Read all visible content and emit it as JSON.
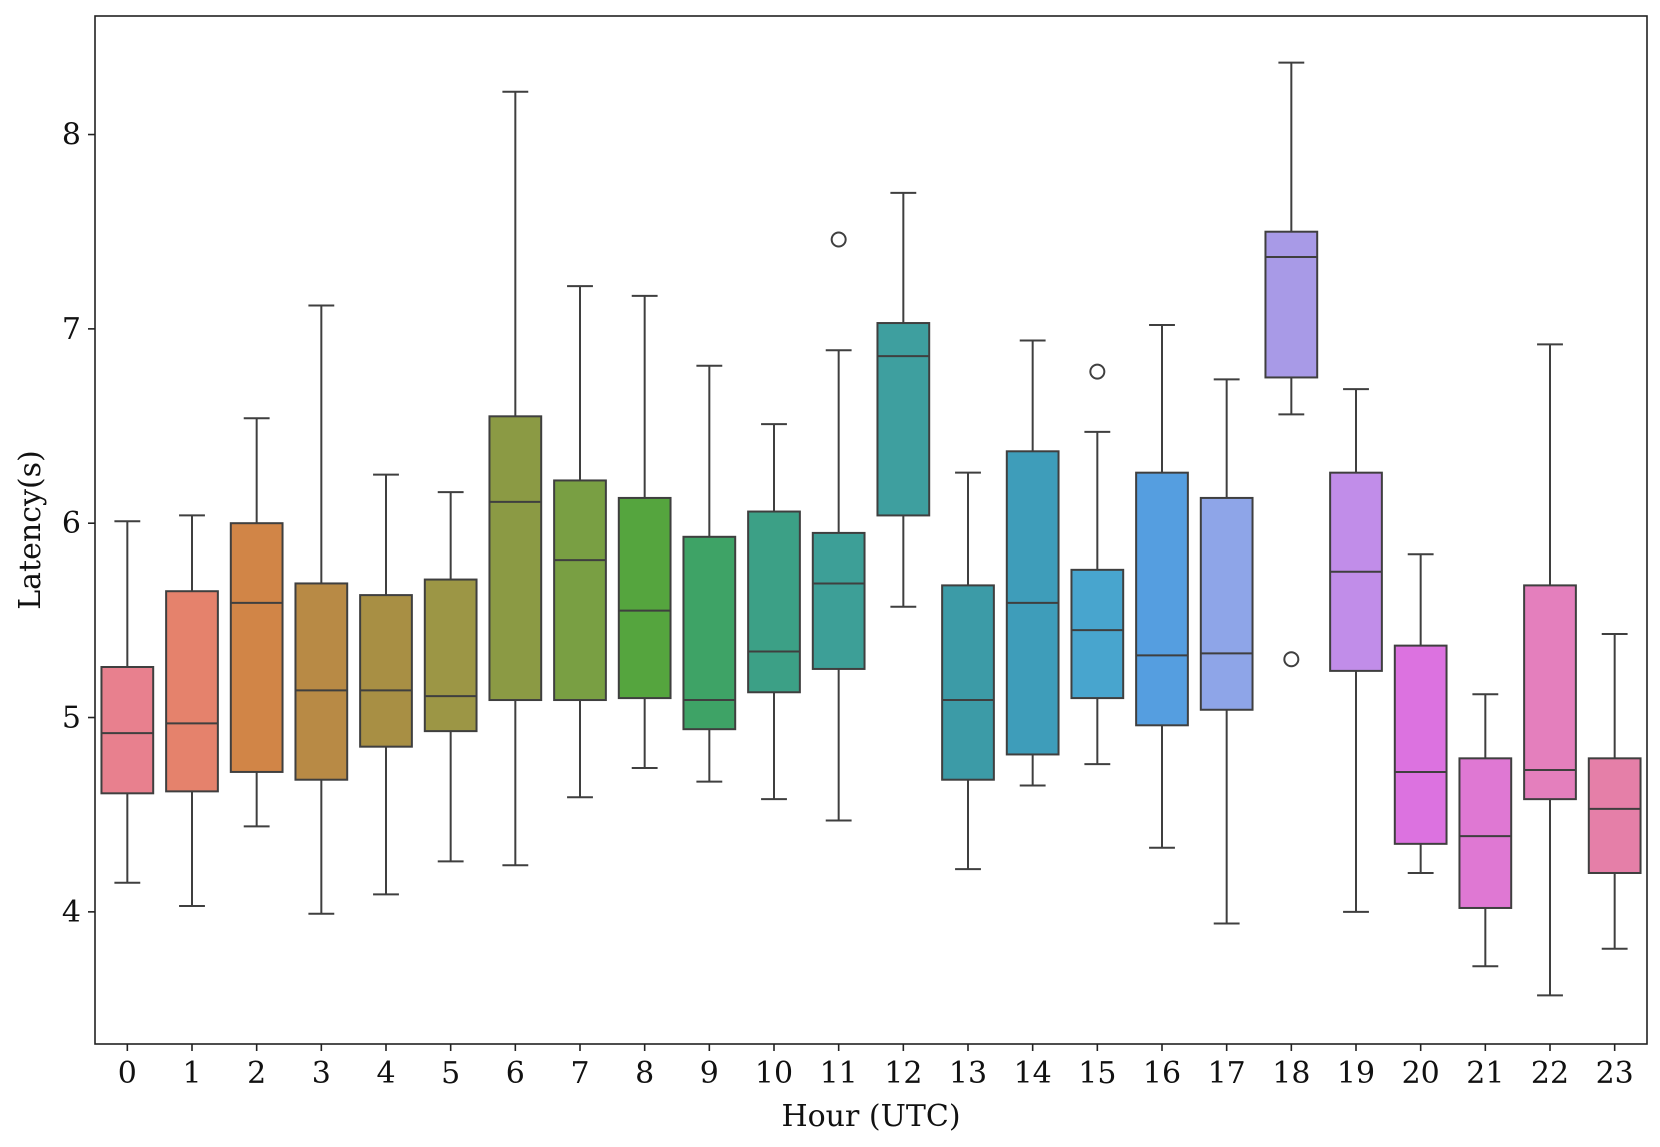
{
  "chart_data": {
    "type": "box",
    "xlabel": "Hour (UTC)",
    "ylabel": "Latency(s)",
    "ylim": [
      3.32,
      8.61
    ],
    "yticks": [
      "4",
      "5",
      "6",
      "7",
      "8"
    ],
    "grid": false,
    "categories": [
      "0",
      "1",
      "2",
      "3",
      "4",
      "5",
      "6",
      "7",
      "8",
      "9",
      "10",
      "11",
      "12",
      "13",
      "14",
      "15",
      "16",
      "17",
      "18",
      "19",
      "20",
      "21",
      "22",
      "23"
    ],
    "colors": [
      "#e8808e",
      "#e5826c",
      "#d18547",
      "#b88a45",
      "#a88f44",
      "#9c9645",
      "#8b9a44",
      "#799f43",
      "#55a53e",
      "#3ea366",
      "#3ca086",
      "#3d9f97",
      "#3e9f9f",
      "#3c9ba7",
      "#3e9dba",
      "#48a5ce",
      "#559ee0",
      "#8ea5e8",
      "#a89ae7",
      "#c18de9",
      "#dc72e0",
      "#df78d3",
      "#e47fbd",
      "#e57fa8"
    ],
    "boxes": [
      {
        "whislo": 4.15,
        "q1": 4.61,
        "med": 4.92,
        "q3": 5.26,
        "whishi": 6.01,
        "fliers": []
      },
      {
        "whislo": 4.03,
        "q1": 4.62,
        "med": 4.97,
        "q3": 5.65,
        "whishi": 6.04,
        "fliers": []
      },
      {
        "whislo": 4.44,
        "q1": 4.72,
        "med": 5.59,
        "q3": 6.0,
        "whishi": 6.54,
        "fliers": []
      },
      {
        "whislo": 3.99,
        "q1": 4.68,
        "med": 5.14,
        "q3": 5.69,
        "whishi": 7.12,
        "fliers": []
      },
      {
        "whislo": 4.09,
        "q1": 4.85,
        "med": 5.14,
        "q3": 5.63,
        "whishi": 6.25,
        "fliers": []
      },
      {
        "whislo": 4.26,
        "q1": 4.93,
        "med": 5.11,
        "q3": 5.71,
        "whishi": 6.16,
        "fliers": []
      },
      {
        "whislo": 4.24,
        "q1": 5.09,
        "med": 6.11,
        "q3": 6.55,
        "whishi": 8.22,
        "fliers": []
      },
      {
        "whislo": 4.59,
        "q1": 5.09,
        "med": 5.81,
        "q3": 6.22,
        "whishi": 7.22,
        "fliers": []
      },
      {
        "whislo": 4.74,
        "q1": 5.1,
        "med": 5.55,
        "q3": 6.13,
        "whishi": 7.17,
        "fliers": []
      },
      {
        "whislo": 4.67,
        "q1": 4.94,
        "med": 5.09,
        "q3": 5.93,
        "whishi": 6.81,
        "fliers": []
      },
      {
        "whislo": 4.58,
        "q1": 5.13,
        "med": 5.34,
        "q3": 6.06,
        "whishi": 6.51,
        "fliers": []
      },
      {
        "whislo": 4.47,
        "q1": 5.25,
        "med": 5.69,
        "q3": 5.95,
        "whishi": 6.89,
        "fliers": [
          7.46
        ]
      },
      {
        "whislo": 5.57,
        "q1": 6.04,
        "med": 6.86,
        "q3": 7.03,
        "whishi": 7.7,
        "fliers": []
      },
      {
        "whislo": 4.22,
        "q1": 4.68,
        "med": 5.09,
        "q3": 5.68,
        "whishi": 6.26,
        "fliers": []
      },
      {
        "whislo": 4.65,
        "q1": 4.81,
        "med": 5.59,
        "q3": 6.37,
        "whishi": 6.94,
        "fliers": []
      },
      {
        "whislo": 4.76,
        "q1": 5.1,
        "med": 5.45,
        "q3": 5.76,
        "whishi": 6.47,
        "fliers": [
          6.78
        ]
      },
      {
        "whislo": 4.33,
        "q1": 4.96,
        "med": 5.32,
        "q3": 6.26,
        "whishi": 7.02,
        "fliers": []
      },
      {
        "whislo": 3.94,
        "q1": 5.04,
        "med": 5.33,
        "q3": 6.13,
        "whishi": 6.74,
        "fliers": []
      },
      {
        "whislo": 6.56,
        "q1": 6.75,
        "med": 7.37,
        "q3": 7.5,
        "whishi": 8.37,
        "fliers": [
          5.3
        ]
      },
      {
        "whislo": 4.0,
        "q1": 5.24,
        "med": 5.75,
        "q3": 6.26,
        "whishi": 6.69,
        "fliers": []
      },
      {
        "whislo": 4.2,
        "q1": 4.35,
        "med": 4.72,
        "q3": 5.37,
        "whishi": 5.84,
        "fliers": []
      },
      {
        "whislo": 3.72,
        "q1": 4.02,
        "med": 4.39,
        "q3": 4.79,
        "whishi": 5.12,
        "fliers": []
      },
      {
        "whislo": 3.57,
        "q1": 4.58,
        "med": 4.73,
        "q3": 5.68,
        "whishi": 6.92,
        "fliers": []
      },
      {
        "whislo": 3.81,
        "q1": 4.2,
        "med": 4.53,
        "q3": 4.79,
        "whishi": 5.43,
        "fliers": []
      }
    ]
  }
}
